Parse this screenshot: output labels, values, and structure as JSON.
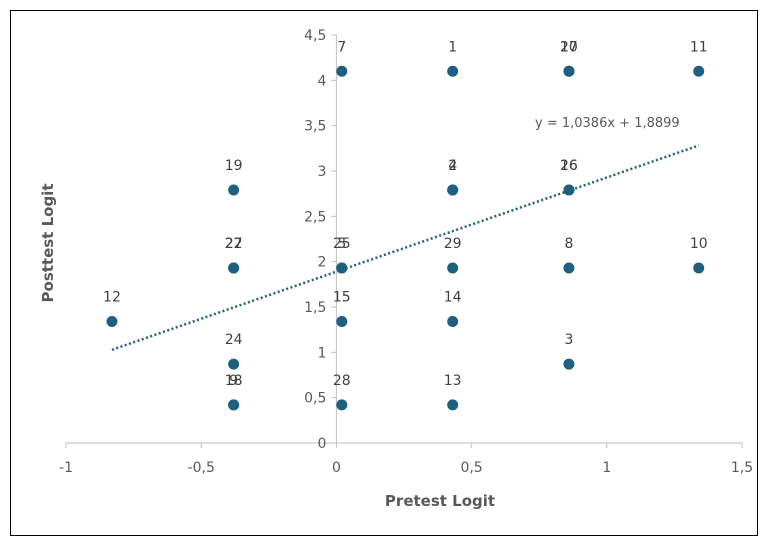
{
  "chart_data": {
    "type": "scatter",
    "title": "",
    "xlabel": "Pretest Logit",
    "ylabel": "Posttest Logit",
    "xlim": [
      -1,
      1.5
    ],
    "ylim": [
      0,
      4.5
    ],
    "x_ticks": [
      "-1",
      "-0,5",
      "0",
      "0,5",
      "1",
      "1,5"
    ],
    "y_ticks": [
      "0",
      "0,5",
      "1",
      "1,5",
      "2",
      "2,5",
      "3",
      "3,5",
      "4",
      "4,5"
    ],
    "point_color": "#1f5f7f",
    "trend_color": "#1f5f7f",
    "trendline": {
      "slope": 1.0386,
      "intercept": 1.8899,
      "x_range": [
        -0.83,
        1.34
      ],
      "label": "y = 1,0386x + 1,8899"
    },
    "points": [
      {
        "label": "7",
        "x": 0.02,
        "y": 4.1
      },
      {
        "label": "1",
        "x": 0.43,
        "y": 4.1
      },
      {
        "label": "17",
        "x": 0.86,
        "y": 4.1
      },
      {
        "label": "20",
        "x": 0.86,
        "y": 4.1
      },
      {
        "label": "11",
        "x": 1.34,
        "y": 4.1
      },
      {
        "label": "19",
        "x": -0.38,
        "y": 2.79
      },
      {
        "label": "2",
        "x": 0.43,
        "y": 2.79
      },
      {
        "label": "4",
        "x": 0.43,
        "y": 2.79
      },
      {
        "label": "16",
        "x": 0.86,
        "y": 2.79
      },
      {
        "label": "26",
        "x": 0.86,
        "y": 2.79
      },
      {
        "label": "22",
        "x": -0.38,
        "y": 1.93
      },
      {
        "label": "27",
        "x": -0.38,
        "y": 1.93
      },
      {
        "label": "25",
        "x": 0.02,
        "y": 1.93
      },
      {
        "label": "5",
        "x": 0.02,
        "y": 1.93
      },
      {
        "label": "29",
        "x": 0.43,
        "y": 1.93
      },
      {
        "label": "8",
        "x": 0.86,
        "y": 1.93
      },
      {
        "label": "10",
        "x": 1.34,
        "y": 1.93
      },
      {
        "label": "12",
        "x": -0.83,
        "y": 1.34
      },
      {
        "label": "15",
        "x": 0.02,
        "y": 1.34
      },
      {
        "label": "14",
        "x": 0.43,
        "y": 1.34
      },
      {
        "label": "24",
        "x": -0.38,
        "y": 0.87
      },
      {
        "label": "3",
        "x": 0.86,
        "y": 0.87
      },
      {
        "label": "18",
        "x": -0.38,
        "y": 0.42
      },
      {
        "label": "9",
        "x": -0.38,
        "y": 0.42
      },
      {
        "label": "28",
        "x": 0.02,
        "y": 0.42
      },
      {
        "label": "13",
        "x": 0.43,
        "y": 0.42
      }
    ]
  }
}
